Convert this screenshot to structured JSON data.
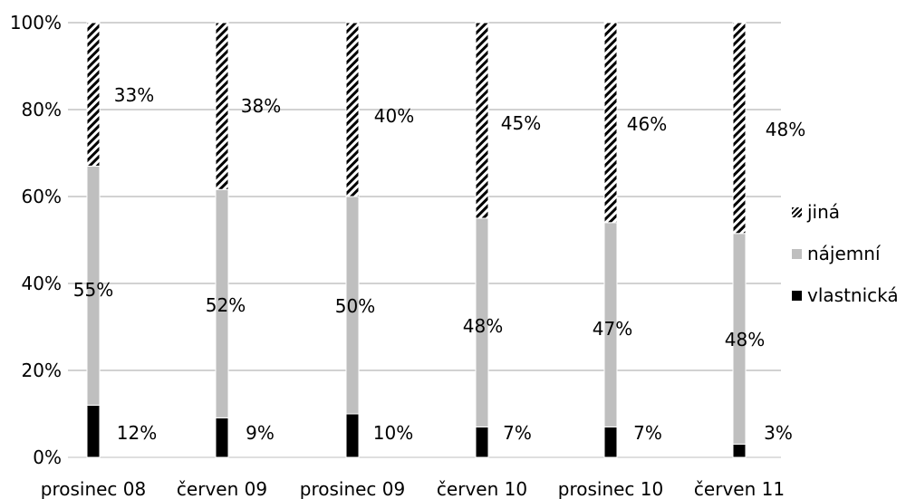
{
  "chart_data": {
    "type": "bar",
    "stacked": true,
    "normalized": true,
    "categories": [
      "prosinec 08",
      "červen 09",
      "prosinec 09",
      "červen 10",
      "prosinec 10",
      "červen 11"
    ],
    "series": [
      {
        "name": "vlastnická",
        "values": [
          12,
          9,
          10,
          7,
          7,
          3
        ],
        "labels": [
          "12%",
          "9%",
          "10%",
          "7%",
          "7%",
          "3%"
        ],
        "color": "#000000",
        "pattern": "solid"
      },
      {
        "name": "nájemní",
        "values": [
          55,
          52,
          50,
          48,
          47,
          48
        ],
        "labels": [
          "55%",
          "52%",
          "50%",
          "48%",
          "47%",
          "48%"
        ],
        "color": "#bfbfbf",
        "pattern": "solid"
      },
      {
        "name": "jiná",
        "values": [
          33,
          38,
          40,
          45,
          46,
          48
        ],
        "labels": [
          "33%",
          "38%",
          "40%",
          "45%",
          "46%",
          "48%"
        ],
        "color": "#000000",
        "pattern": "diagonal-hatch"
      }
    ],
    "yticks": [
      "0%",
      "20%",
      "40%",
      "60%",
      "80%",
      "100%"
    ],
    "ylim": [
      0,
      100
    ],
    "grid": true,
    "legend": {
      "position": "right",
      "order": [
        "jiná",
        "nájemní",
        "vlastnická"
      ]
    }
  }
}
